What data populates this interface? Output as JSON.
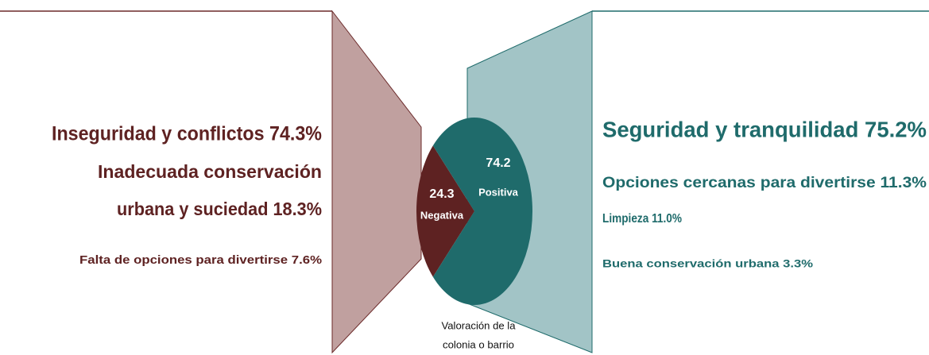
{
  "chart_data": {
    "type": "pie",
    "categories": [
      "Negativa",
      "Positiva"
    ],
    "values": [
      24.3,
      74.2
    ],
    "colors": [
      "#5e2222",
      "#1f6b6b"
    ],
    "caption": [
      "Valoración de la",
      "colonia o barrio"
    ],
    "negative_reasons": [
      "Inseguridad y conflictos 74.3%",
      "Inadecuada conservación",
      "urbana y suciedad 18.3%",
      "Falta de opciones para divertirse 7.6%"
    ],
    "positive_reasons": [
      "Seguridad y tranquilidad 75.2%",
      "Opciones cercanas para divertirse 11.3%",
      "Limpieza 11.0%",
      "Buena conservación urbana 3.3%"
    ]
  }
}
